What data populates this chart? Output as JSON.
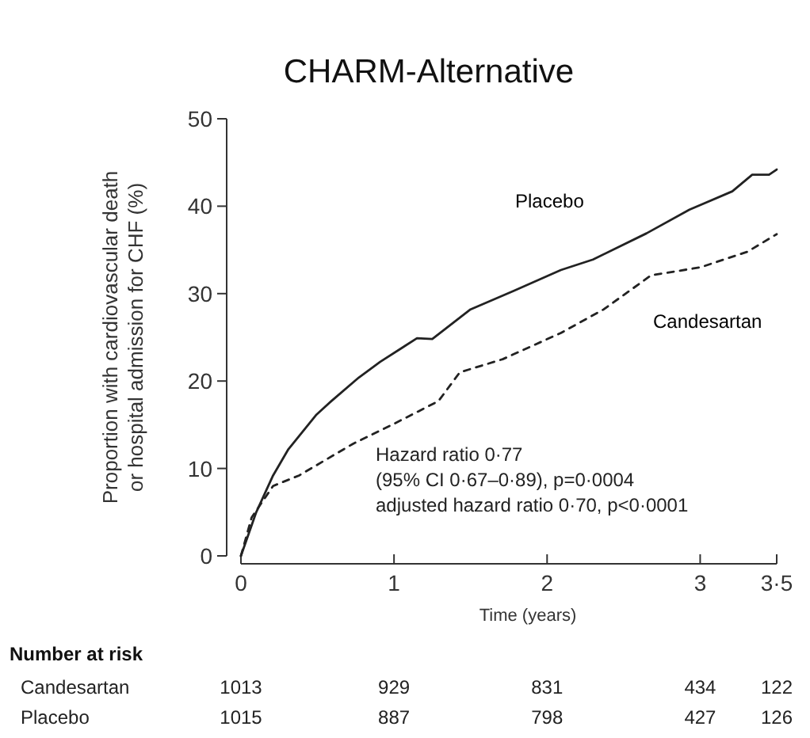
{
  "chart_data": {
    "type": "line",
    "title": "CHARM-Alternative",
    "xlabel": "Time (years)",
    "ylabel": "Proportion with cardiovascular death\nor hospital admission for CHF (%)",
    "xlim": [
      0,
      3.5
    ],
    "ylim": [
      0,
      50
    ],
    "xticks": [
      0,
      1,
      2,
      3,
      {
        "value": 3.5,
        "label": "3·5"
      }
    ],
    "yticks": [
      0,
      10,
      20,
      30,
      40,
      50
    ],
    "legend": false,
    "series": [
      {
        "name": "Placebo",
        "color": "#222222",
        "line_style": "solid",
        "x": [
          0,
          0.1,
          0.21,
          0.31,
          0.49,
          0.59,
          0.77,
          0.91,
          1.15,
          1.25,
          1.5,
          1.78,
          2.09,
          2.3,
          2.65,
          2.93,
          3.21,
          3.34,
          3.45,
          3.5
        ],
        "values": [
          0,
          5,
          9.2,
          12.2,
          16.1,
          17.7,
          20.4,
          22.2,
          24.9,
          24.8,
          28.2,
          30.3,
          32.7,
          33.9,
          36.9,
          39.6,
          41.7,
          43.6,
          43.6,
          44.2
        ]
      },
      {
        "name": "Candesartan",
        "color": "#222222",
        "line_style": "dashed",
        "x": [
          0,
          0.07,
          0.21,
          0.38,
          0.73,
          1.01,
          1.29,
          1.43,
          1.71,
          2.09,
          2.37,
          2.68,
          3.0,
          3.31,
          3.5
        ],
        "values": [
          0,
          4.4,
          8,
          9.2,
          12.8,
          15.2,
          17.7,
          21,
          22.5,
          25.5,
          28.2,
          32.1,
          33,
          34.8,
          36.8
        ]
      }
    ],
    "annotations": [
      "Hazard ratio 0·77",
      "(95% CI 0·67–0·89), p=0·0004",
      "adjusted hazard ratio 0·70, p<0·0001",
      "Number at risk",
      "Candesartan 1013 929 831 434 122",
      "Placebo 1015 887 798 427 126"
    ]
  }
}
